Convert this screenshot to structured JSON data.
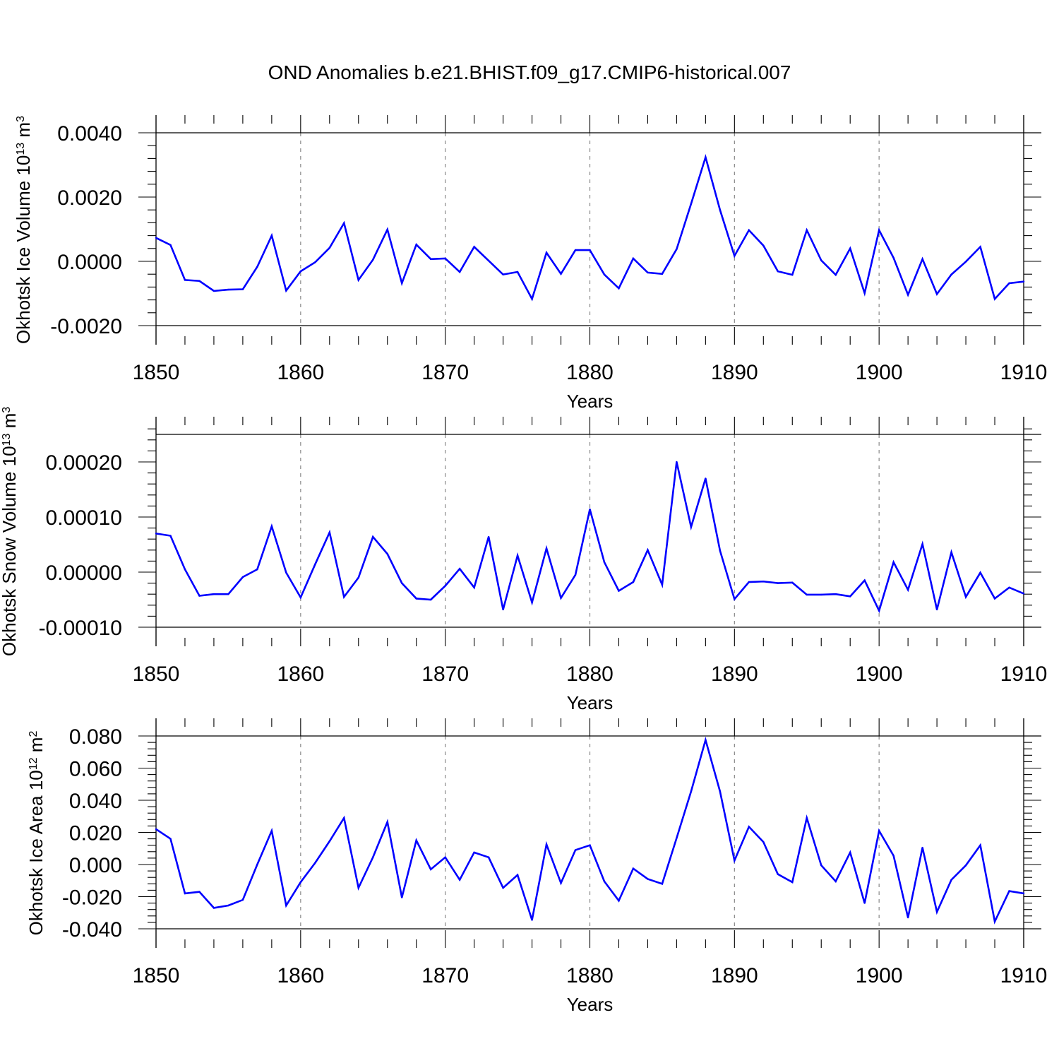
{
  "title": "OND Anomalies b.e21.BHIST.f09_g17.CMIP6-historical.007",
  "chart_data": [
    {
      "type": "line",
      "ylabel": "Okhotsk Ice Volume 10",
      "ylabel_exp": "13",
      "ylabel_unit": "m",
      "ylabel_unit_exp": "3",
      "xlabel": "Years",
      "xlim": [
        1850,
        1910
      ],
      "ylim": [
        -0.002,
        0.004
      ],
      "xticks": [
        1850,
        1860,
        1870,
        1880,
        1890,
        1900,
        1910
      ],
      "xtick_labels": [
        "1850",
        "1860",
        "1870",
        "1880",
        "1890",
        "1900",
        "1910"
      ],
      "yticks": [
        -0.002,
        0.0,
        0.002,
        0.004
      ],
      "ytick_labels": [
        "-0.0020",
        "0.0000",
        "0.0020",
        "0.0040"
      ],
      "color": "#0000ff",
      "series": [
        {
          "name": "Okhotsk Ice Volume",
          "x_start": 1850,
          "values": [
            0.00073,
            0.00051,
            -0.00058,
            -0.00061,
            -0.00092,
            -0.00088,
            -0.00087,
            -0.00017,
            0.0008,
            -0.00091,
            -0.00031,
            -3e-05,
            0.00042,
            0.00119,
            -0.00058,
            5e-05,
            0.00099,
            -0.00068,
            0.00052,
            7e-05,
            9e-05,
            -0.00033,
            0.00045,
            2e-05,
            -0.00041,
            -0.00033,
            -0.00117,
            0.00027,
            -0.00039,
            0.00035,
            0.00035,
            -0.00041,
            -0.00084,
            9e-05,
            -0.00035,
            -0.00039,
            0.00038,
            0.00179,
            0.00324,
            0.0016,
            0.00017,
            0.00097,
            0.00049,
            -0.00031,
            -0.00042,
            0.00097,
            3e-05,
            -0.00042,
            0.0004,
            -0.00099,
            0.00097,
            0.00011,
            -0.00104,
            7e-05,
            -0.00102,
            -0.00041,
            -1e-05,
            0.00045,
            -0.00117,
            -0.00068,
            -0.00063
          ]
        }
      ]
    },
    {
      "type": "line",
      "ylabel": "Okhotsk Snow Volume 10",
      "ylabel_exp": "13",
      "ylabel_unit": "m",
      "ylabel_unit_exp": "3",
      "xlabel": "Years",
      "xlim": [
        1850,
        1910
      ],
      "ylim": [
        -0.0001,
        0.00025
      ],
      "xticks": [
        1850,
        1860,
        1870,
        1880,
        1890,
        1900,
        1910
      ],
      "xtick_labels": [
        "1850",
        "1860",
        "1870",
        "1880",
        "1890",
        "1900",
        "1910"
      ],
      "yticks": [
        -0.0001,
        0.0,
        0.0001,
        0.0002
      ],
      "ytick_labels": [
        "-0.00010",
        "0.00000",
        "0.00010",
        "0.00020"
      ],
      "color": "#0000ff",
      "series": [
        {
          "name": "Okhotsk Snow Volume",
          "x_start": 1850,
          "values": [
            7e-05,
            6.6e-05,
            5e-06,
            -4.3e-05,
            -4e-05,
            -4e-05,
            -9e-06,
            5e-06,
            8.3e-05,
            -1e-06,
            -4.6e-05,
            1.4e-05,
            7.2e-05,
            -4.5e-05,
            -1e-05,
            6.4e-05,
            3.3e-05,
            -2e-05,
            -4.8e-05,
            -5e-05,
            -2.5e-05,
            6e-06,
            -2.8e-05,
            6.4e-05,
            -6.8e-05,
            3e-05,
            -5.5e-05,
            4.3e-05,
            -4.7e-05,
            -5e-06,
            0.000114,
            1.8e-05,
            -3.4e-05,
            -1.8e-05,
            4e-05,
            -2.3e-05,
            0.0002,
            8.2e-05,
            0.00017,
            3.9e-05,
            -4.9e-05,
            -1.8e-05,
            -1.7e-05,
            -2e-05,
            -1.9e-05,
            -4.1e-05,
            -4.1e-05,
            -4e-05,
            -4.4e-05,
            -1.5e-05,
            -7e-05,
            1.8e-05,
            -3.2e-05,
            5.1e-05,
            -6.8e-05,
            3.6e-05,
            -4.5e-05,
            -1e-06,
            -4.8e-05,
            -2.8e-05,
            -3.9e-05
          ]
        }
      ]
    },
    {
      "type": "line",
      "ylabel": "Okhotsk Ice Area 10",
      "ylabel_exp": "12",
      "ylabel_unit": "m",
      "ylabel_unit_exp": "2",
      "xlabel": "Years",
      "xlim": [
        1850,
        1910
      ],
      "ylim": [
        -0.04,
        0.08
      ],
      "xticks": [
        1850,
        1860,
        1870,
        1880,
        1890,
        1900,
        1910
      ],
      "xtick_labels": [
        "1850",
        "1860",
        "1870",
        "1880",
        "1890",
        "1900",
        "1910"
      ],
      "yticks": [
        -0.04,
        -0.02,
        0.0,
        0.02,
        0.04,
        0.06,
        0.08
      ],
      "ytick_labels": [
        "-0.040",
        "-0.020",
        "0.000",
        "0.020",
        "0.040",
        "0.060",
        "0.080"
      ],
      "color": "#0000ff",
      "series": [
        {
          "name": "Okhotsk Ice Area",
          "x_start": 1850,
          "values": [
            0.022,
            0.016,
            -0.018,
            -0.017,
            -0.027,
            -0.0255,
            -0.022,
            0.0,
            0.021,
            -0.0255,
            -0.011,
            0.001,
            0.0145,
            0.029,
            -0.0145,
            0.0045,
            0.0265,
            -0.0205,
            0.015,
            -0.003,
            0.0045,
            -0.0095,
            0.0075,
            0.0045,
            -0.0145,
            -0.0065,
            -0.0345,
            0.0125,
            -0.0115,
            0.009,
            0.012,
            -0.0105,
            -0.0225,
            -0.0025,
            -0.009,
            -0.012,
            0.0165,
            0.0455,
            0.0775,
            0.0455,
            0.0025,
            0.0235,
            0.014,
            -0.006,
            -0.011,
            0.029,
            -0.0005,
            -0.0105,
            0.0075,
            -0.024,
            0.021,
            0.0055,
            -0.033,
            0.0105,
            -0.0295,
            -0.0095,
            -0.0005,
            0.012,
            -0.0355,
            -0.0165,
            -0.018
          ]
        }
      ]
    }
  ]
}
